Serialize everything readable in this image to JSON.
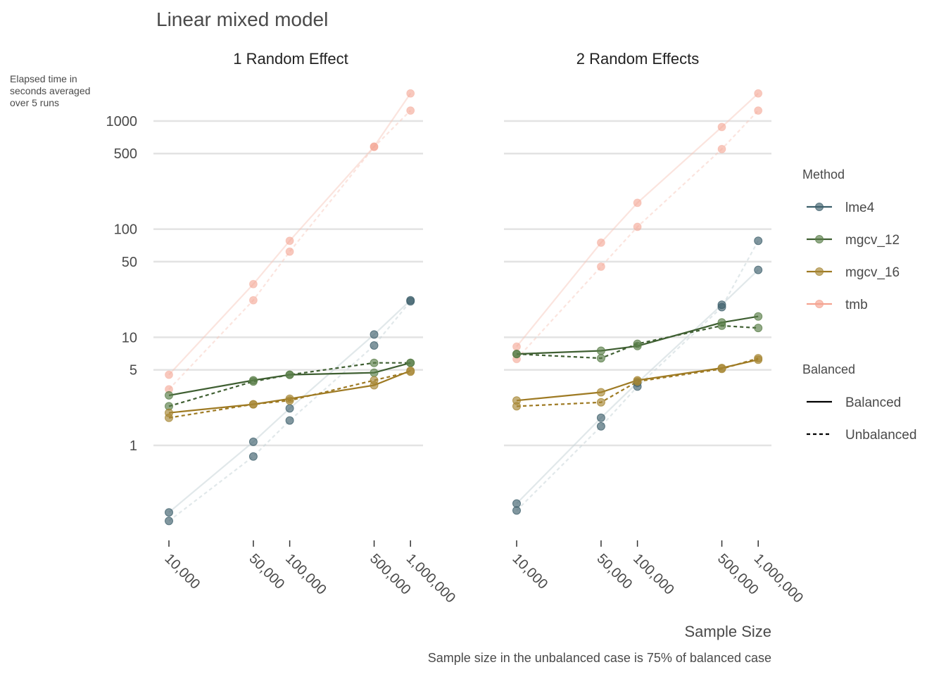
{
  "chart_data": {
    "type": "line",
    "title": "Linear mixed model",
    "ylabel": "Elapsed time in seconds averaged over 5 runs",
    "ylabel_lines": [
      "Elapsed time in",
      "seconds averaged",
      "over 5 runs"
    ],
    "xlabel": "Sample Size",
    "caption": "Sample size in the unbalanced case is 75% of balanced case",
    "x_scale": "log",
    "y_scale": "log",
    "x_ticks": [
      10000,
      50000,
      100000,
      500000,
      1000000
    ],
    "x_tick_labels": [
      "10,000",
      "50,000",
      "100,000",
      "500,000",
      "1,000,000"
    ],
    "y_ticks": [
      1,
      5,
      10,
      50,
      100,
      500,
      1000
    ],
    "y_tick_labels": [
      "1",
      "5",
      "10",
      "50",
      "100",
      "500",
      "1000"
    ],
    "ylim": [
      0.15,
      3500
    ],
    "grid": "horizontal",
    "legend_position": "right",
    "colors": {
      "lme4": "#3d5f6b",
      "mgcv_12": "#587d47",
      "mgcv_16": "#a68532",
      "tmb": "#f4a391",
      "mgcv_12_line": "#3f5f32",
      "mgcv_16_line": "#9e7a23"
    },
    "legends": {
      "method_title": "Method",
      "method_items": [
        "lme4",
        "mgcv_12",
        "mgcv_16",
        "tmb"
      ],
      "balanced_title": "Balanced",
      "balanced_items": [
        "Balanced",
        "Unbalanced"
      ]
    },
    "panels": [
      {
        "title": "1 Random Effect",
        "series": [
          {
            "method": "lme4",
            "balanced": "Balanced",
            "values": [
              0.24,
              1.08,
              2.2,
              10.6,
              22
            ]
          },
          {
            "method": "lme4",
            "balanced": "Unbalanced",
            "values": [
              0.2,
              0.79,
              1.7,
              8.4,
              21.5
            ]
          },
          {
            "method": "mgcv_12",
            "balanced": "Balanced",
            "values": [
              2.9,
              4.0,
              4.5,
              4.7,
              5.8
            ]
          },
          {
            "method": "mgcv_12",
            "balanced": "Unbalanced",
            "values": [
              2.3,
              3.9,
              4.5,
              5.8,
              5.8
            ]
          },
          {
            "method": "mgcv_16",
            "balanced": "Balanced",
            "values": [
              2.0,
              2.4,
              2.7,
              3.6,
              4.9
            ]
          },
          {
            "method": "mgcv_16",
            "balanced": "Unbalanced",
            "values": [
              1.8,
              2.4,
              2.6,
              4.0,
              4.8
            ]
          },
          {
            "method": "tmb",
            "balanced": "Balanced",
            "values": [
              4.5,
              31,
              78,
              580,
              1800
            ]
          },
          {
            "method": "tmb",
            "balanced": "Unbalanced",
            "values": [
              3.3,
              22,
              62,
              575,
              1250
            ]
          }
        ]
      },
      {
        "title": "2 Random Effects",
        "series": [
          {
            "method": "lme4",
            "balanced": "Balanced",
            "values": [
              0.29,
              1.8,
              3.8,
              20,
              42
            ]
          },
          {
            "method": "lme4",
            "balanced": "Unbalanced",
            "values": [
              0.25,
              1.5,
              3.5,
              19,
              78
            ]
          },
          {
            "method": "mgcv_12",
            "balanced": "Balanced",
            "values": [
              7.0,
              7.5,
              8.3,
              13.7,
              15.6
            ]
          },
          {
            "method": "mgcv_12",
            "balanced": "Unbalanced",
            "values": [
              7.0,
              6.4,
              8.7,
              12.8,
              12.2
            ]
          },
          {
            "method": "mgcv_16",
            "balanced": "Balanced",
            "values": [
              2.6,
              3.1,
              4.0,
              5.2,
              6.2
            ]
          },
          {
            "method": "mgcv_16",
            "balanced": "Unbalanced",
            "values": [
              2.3,
              2.5,
              3.9,
              5.1,
              6.4
            ]
          },
          {
            "method": "tmb",
            "balanced": "Balanced",
            "values": [
              8.2,
              75,
              175,
              880,
              1800
            ]
          },
          {
            "method": "tmb",
            "balanced": "Unbalanced",
            "values": [
              6.3,
              45,
              105,
              550,
              1250
            ]
          }
        ]
      }
    ]
  }
}
